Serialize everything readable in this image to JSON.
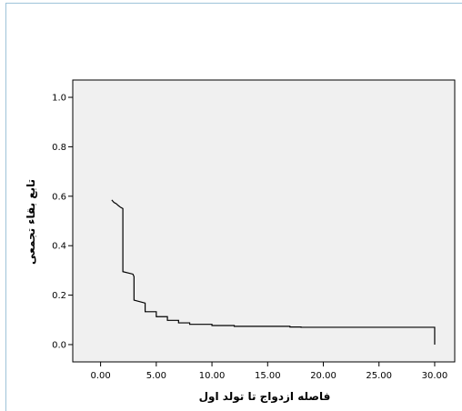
{
  "chart_data": {
    "type": "line",
    "title": "",
    "xlabel": "فاصله ازدواج تا تولد اول",
    "ylabel": "تابع بقاء تجمعی",
    "xlim": [
      -2.5,
      31.8
    ],
    "ylim": [
      -0.07,
      1.07
    ],
    "xticks": [
      "0.00",
      "5.00",
      "10.00",
      "15.00",
      "20.00",
      "25.00",
      "30.00"
    ],
    "yticks": [
      "0.0",
      "0.2",
      "0.4",
      "0.6",
      "0.8",
      "1.0"
    ],
    "grid": false,
    "plot_background": "#f0f0f0",
    "line_color": "#000000",
    "series": [
      {
        "x": [
          1.0,
          1.2,
          1.4,
          1.6,
          1.8,
          2.0,
          2.0,
          2.9,
          3.0,
          3.0,
          4.0,
          4.0,
          5.0,
          5.0,
          6.0,
          6.0,
          7.0,
          7.0,
          8.0,
          8.0,
          10.0,
          10.0,
          12.0,
          12.0,
          17.0,
          17.0,
          18.0,
          18.0,
          30.0,
          30.0
        ],
        "y": [
          0.585,
          0.575,
          0.57,
          0.562,
          0.555,
          0.55,
          0.295,
          0.285,
          0.275,
          0.18,
          0.168,
          0.133,
          0.133,
          0.113,
          0.113,
          0.098,
          0.098,
          0.088,
          0.088,
          0.082,
          0.082,
          0.077,
          0.077,
          0.074,
          0.074,
          0.071,
          0.071,
          0.07,
          0.07,
          0.0
        ]
      }
    ]
  }
}
